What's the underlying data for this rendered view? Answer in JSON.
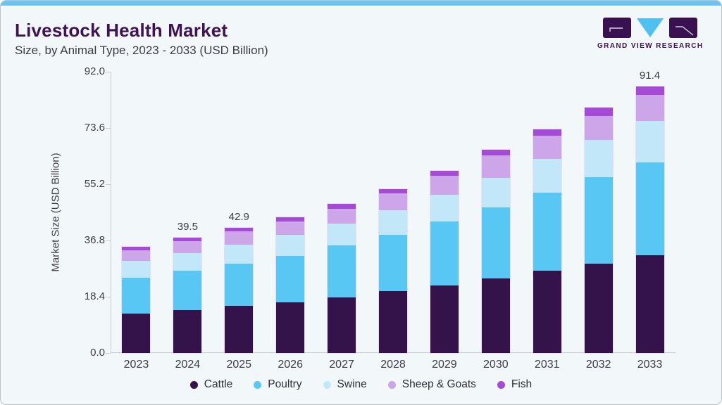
{
  "header": {
    "title": "Livestock Health Market",
    "subtitle": "Size, by Animal Type, 2023 - 2033 (USD Billion)",
    "logo_text": "GRAND VIEW RESEARCH"
  },
  "colors": {
    "accent_strip": "#6ac4ef",
    "card_background": "#f2f7fa",
    "title_purple": "#3e1253",
    "body_text": "#3c3c45",
    "axis_line": "#c7ccd3",
    "logo_block": "#3a1150",
    "logo_triangle": "#4ec1f0"
  },
  "chart_data": {
    "type": "bar",
    "stacked": true,
    "title": "Livestock Health Market Size, by Animal Type, 2023 - 2033 (USD Billion)",
    "categories": [
      "2023",
      "2024",
      "2025",
      "2026",
      "2027",
      "2028",
      "2029",
      "2030",
      "2031",
      "2032",
      "2033"
    ],
    "series": [
      {
        "name": "Cattle",
        "color": "#331349",
        "values": [
          13.6,
          14.8,
          16.1,
          17.3,
          19.0,
          21.1,
          23.1,
          25.5,
          28.3,
          30.7,
          33.5
        ]
      },
      {
        "name": "Poultry",
        "color": "#58c7f3",
        "values": [
          12.3,
          13.4,
          14.5,
          16.0,
          17.9,
          19.4,
          21.9,
          24.4,
          26.7,
          29.5,
          31.8
        ]
      },
      {
        "name": "Swine",
        "color": "#c2e7f9",
        "values": [
          5.6,
          6.1,
          6.6,
          7.2,
          7.5,
          8.4,
          9.3,
          10.2,
          11.6,
          12.7,
          14.3
        ]
      },
      {
        "name": "Sheep & Goats",
        "color": "#cda5e9",
        "values": [
          3.7,
          4.1,
          4.5,
          4.6,
          5.0,
          5.7,
          6.4,
          7.5,
          7.8,
          8.4,
          8.9
        ]
      },
      {
        "name": "Fish",
        "color": "#a54ad7",
        "values": [
          1.1,
          1.1,
          1.2,
          1.4,
          1.6,
          1.5,
          1.7,
          2.0,
          2.2,
          2.7,
          2.9
        ]
      }
    ],
    "totals": [
      36.3,
      39.5,
      42.9,
      46.5,
      51.0,
      56.1,
      62.4,
      69.6,
      76.6,
      84.0,
      91.4
    ],
    "bar_total_labels": [
      "",
      "39.5",
      "42.9",
      "",
      "",
      "",
      "",
      "",
      "",
      "",
      "91.4"
    ],
    "xlabel": "",
    "ylabel": "Market Size (USD Billion)",
    "ylim": [
      0,
      92.0
    ],
    "yticks": [
      0.0,
      18.4,
      36.8,
      55.2,
      73.6,
      92.0
    ],
    "ytick_labels": [
      "0.0",
      "18.4",
      "36.8",
      "55.2",
      "73.6",
      "92.0"
    ],
    "grid": false,
    "legend_position": "bottom"
  }
}
